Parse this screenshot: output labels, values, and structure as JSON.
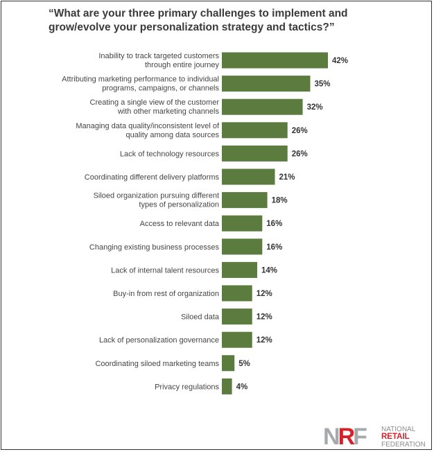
{
  "chart_data": {
    "type": "bar",
    "orientation": "horizontal",
    "title": "“What are your three primary challenges to implement and grow/evolve your personalization strategy and tactics?”",
    "categories": [
      [
        "Inability to track targeted customers",
        "through entire journey"
      ],
      [
        "Attributing marketing performance to individual",
        "programs, campaigns, or channels"
      ],
      [
        "Creating a single view of the customer",
        "with other marketing channels"
      ],
      [
        "Managing data quality/inconsistent level of",
        "quality among data sources"
      ],
      [
        "Lack of technology resources"
      ],
      [
        "Coordinating different delivery platforms"
      ],
      [
        "Siloed organization pursuing different",
        "types of personalization"
      ],
      [
        "Access to relevant data"
      ],
      [
        "Changing existing business processes"
      ],
      [
        "Lack of internal talent resources"
      ],
      [
        "Buy-in from rest of organization"
      ],
      [
        "Siloed data"
      ],
      [
        "Lack of personalization governance"
      ],
      [
        "Coordinating siloed marketing teams"
      ],
      [
        "Privacy regulations"
      ]
    ],
    "values": [
      42,
      35,
      32,
      26,
      26,
      21,
      18,
      16,
      16,
      14,
      12,
      12,
      12,
      5,
      4
    ],
    "value_labels": [
      "42%",
      "35%",
      "32%",
      "26%",
      "26%",
      "21%",
      "18%",
      "16%",
      "16%",
      "14%",
      "12%",
      "12%",
      "12%",
      "5%",
      "4%"
    ],
    "unit": "%",
    "bar_color": "#5b7b3f",
    "grid": false,
    "legend": "none"
  },
  "logo": {
    "mark": "NRF",
    "line1": "NATIONAL",
    "line2": "RETAIL",
    "line3": "FEDERATION",
    "colors": {
      "gray": "#a7a9ac",
      "red": "#d2232a"
    }
  }
}
